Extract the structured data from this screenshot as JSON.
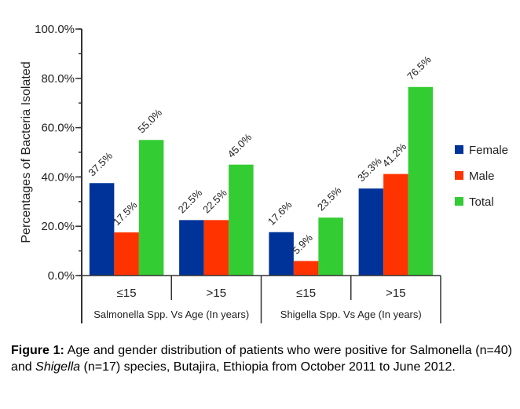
{
  "chart_data": {
    "type": "bar",
    "title": "",
    "ylabel": "Percentages of Bacteria Isolated",
    "xlabel": "",
    "ylim": [
      0,
      100
    ],
    "yticks": [
      "0.0%",
      "20.0%",
      "40.0%",
      "60.0%",
      "80.0%",
      "100.0%"
    ],
    "ytick_values": [
      0,
      20,
      40,
      60,
      80,
      100
    ],
    "minor_ticks_every": 10,
    "groups": [
      {
        "label": "Salmonella Spp. Vs Age (In years)",
        "categories": [
          "≤15",
          ">15"
        ]
      },
      {
        "label": "Shigella Spp. Vs Age (In years)",
        "categories": [
          "≤15",
          ">15"
        ]
      }
    ],
    "categories": [
      "≤15",
      ">15",
      "≤15",
      ">15"
    ],
    "series": [
      {
        "name": "Female",
        "color": "#003399",
        "values": [
          37.5,
          22.5,
          17.6,
          35.3
        ],
        "labels": [
          "37.5%",
          "22.5%",
          "17.6%",
          "35.3%"
        ]
      },
      {
        "name": "Male",
        "color": "#ff3300",
        "values": [
          17.5,
          22.5,
          5.9,
          41.2
        ],
        "labels": [
          "17.5%",
          "22.5%",
          "5.9%",
          "41.2%"
        ]
      },
      {
        "name": "Total",
        "color": "#33cc33",
        "values": [
          55.0,
          45.0,
          23.5,
          76.5
        ],
        "labels": [
          "55.0%",
          "45.0%",
          "23.5%",
          "76.5%"
        ]
      }
    ],
    "legend_position": "right",
    "grid": false
  },
  "caption": {
    "label": "Figure 1:",
    "part1": " Age and gender distribution of patients who were positive for Salmonella (n=40) and ",
    "italic": "Shigella",
    "part2": " (n=17) species, Butajira, Ethiopia from October 2011 to June 2012."
  }
}
